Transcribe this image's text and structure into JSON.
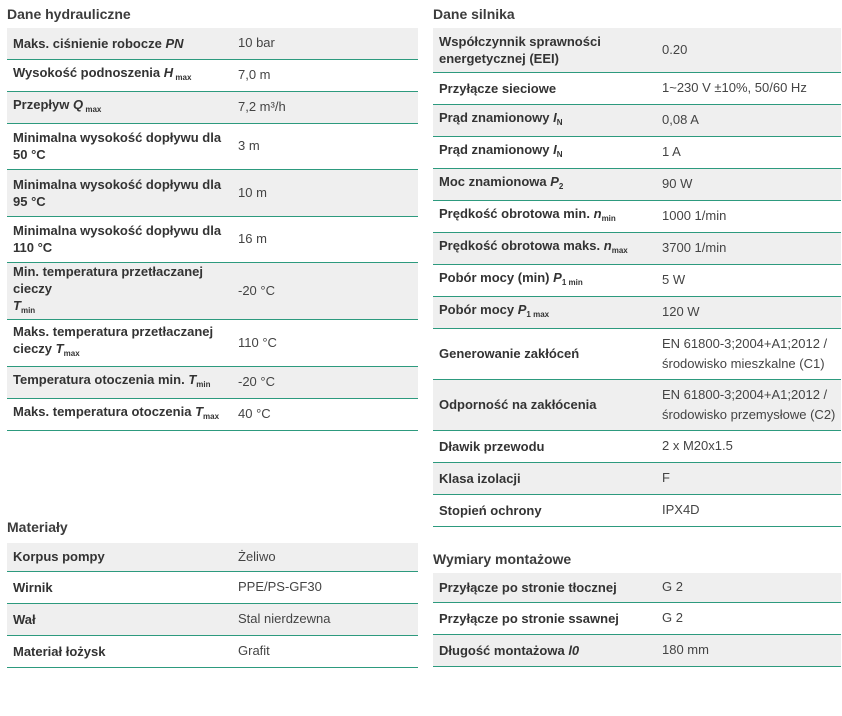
{
  "hydraulic": {
    "title": "Dane hydrauliczne",
    "rows": [
      {
        "label": "Maks. ciśnienie robocze",
        "sym": "PN",
        "value": "10 bar"
      },
      {
        "label": "Wysokość podnoszenia",
        "sym": "H",
        "sub": "max",
        "value": "7,0 m"
      },
      {
        "label": "Przepływ",
        "sym": "Q",
        "sub": "max",
        "value": "7,2 m³/h"
      },
      {
        "label_l1": "Minimalna wysokość dopływu dla",
        "label_l2": "50 °C",
        "value": "3 m"
      },
      {
        "label_l1": "Minimalna wysokość dopływu dla",
        "label_l2": "95 °C",
        "value": "10 m"
      },
      {
        "label_l1": "Minimalna wysokość dopływu dla",
        "label_l2": "110 °C",
        "value": "16 m"
      },
      {
        "label_l1": "Min. temperatura przetłaczanej cieczy",
        "sym": "T",
        "sub": "min",
        "value": "-20 °C"
      },
      {
        "label_l1": "Maks. temperatura przetłaczanej",
        "label_l2": "cieczy",
        "sym": "T",
        "sub": "max",
        "value": "110 °C"
      },
      {
        "label": "Temperatura otoczenia min.",
        "sym": "T",
        "sub": "min",
        "value": "-20 °C"
      },
      {
        "label": "Maks. temperatura otoczenia",
        "sym": "T",
        "sub": "max",
        "value": "40 °C"
      }
    ]
  },
  "motor": {
    "title": "Dane silnika",
    "rows": [
      {
        "label_l1": "Współczynnik sprawności",
        "label_l2": "energetycznej (EEI)",
        "value": "0.20"
      },
      {
        "label": "Przyłącze sieciowe",
        "value": "1~230 V ±10%, 50/60 Hz"
      },
      {
        "label": "Prąd znamionowy",
        "sym": "I",
        "sub": "N",
        "value": "0,08 A"
      },
      {
        "label": "Prąd znamionowy",
        "sym": "I",
        "sub": "N",
        "value": "1 A"
      },
      {
        "label": "Moc znamionowa",
        "sym": "P",
        "sub": "2",
        "value": "90 W"
      },
      {
        "label": "Prędkość obrotowa min.",
        "sym": "n",
        "sub": "min",
        "value": "1000 1/min"
      },
      {
        "label": "Prędkość obrotowa maks.",
        "sym": "n",
        "sub": "max",
        "value": "3700 1/min"
      },
      {
        "label": "Pobór mocy (min)",
        "sym": "P",
        "sub": "1 min",
        "value": "5 W"
      },
      {
        "label": "Pobór mocy",
        "sym": "P",
        "sub": "1 max",
        "value": "120 W"
      },
      {
        "label": "Generowanie zakłóceń",
        "value_l1": "EN 61800-3;2004+A1;2012 /",
        "value_l2": "środowisko mieszkalne (C1)"
      },
      {
        "label": "Odporność na zakłócenia",
        "value_l1": "EN 61800-3;2004+A1;2012 /",
        "value_l2": "środowisko przemysłowe (C2)"
      },
      {
        "label": "Dławik przewodu",
        "value": "2 x M20x1.5"
      },
      {
        "label": "Klasa izolacji",
        "value": "F"
      },
      {
        "label": "Stopień ochrony",
        "value": "IPX4D"
      }
    ]
  },
  "materials": {
    "title": "Materiały",
    "rows": [
      {
        "label": "Korpus pompy",
        "value": "Żeliwo"
      },
      {
        "label": "Wirnik",
        "value": "PPE/PS-GF30"
      },
      {
        "label": "Wał",
        "value": "Stal nierdzewna"
      },
      {
        "label": "Materiał łożysk",
        "value": "Grafit"
      }
    ]
  },
  "mounting": {
    "title": "Wymiary montażowe",
    "rows": [
      {
        "label": "Przyłącze po stronie tłocznej",
        "value": "G 2"
      },
      {
        "label": "Przyłącze po stronie ssawnej",
        "value": "G 2"
      },
      {
        "label": "Długość montażowa",
        "sym": "l0",
        "value": "180 mm"
      }
    ]
  }
}
